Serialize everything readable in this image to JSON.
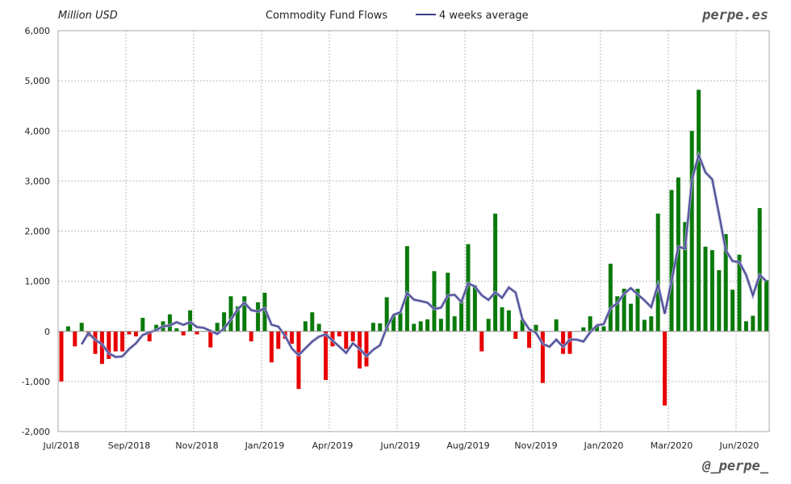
{
  "chart_data": {
    "type": "bar",
    "title": "Commodity Fund Flows",
    "ylabel": "Million USD",
    "legend": {
      "line_label": "4 weeks average",
      "placement": "top"
    },
    "brand_top": "perpe.es",
    "brand_bottom": "@_perpe_",
    "ylim": [
      -2000,
      6000
    ],
    "yticks": [
      6000,
      5000,
      4000,
      3000,
      2000,
      1000,
      0,
      -1000,
      -2000
    ],
    "ytick_labels": [
      "6,000",
      "5,000",
      "4,000",
      "3,000",
      "2,000",
      "1,000",
      "0",
      "-1,000",
      "-2,000"
    ],
    "xtick_labels": [
      "Jul/2018",
      "Sep/2018",
      "Nov/2018",
      "Jan/2019",
      "Apr/2019",
      "Jun/2019",
      "Aug/2019",
      "Nov/2019",
      "Jan/2020",
      "Mar/2020",
      "Jun/2020"
    ],
    "grid": true,
    "colors": {
      "positive": "#0a7a0a",
      "negative": "#e80000",
      "line": "#3c3c8c"
    },
    "values": [
      -1000,
      100,
      -300,
      170,
      -100,
      -450,
      -650,
      -550,
      -400,
      -400,
      -60,
      -100,
      270,
      -200,
      130,
      200,
      340,
      60,
      -80,
      420,
      -60,
      0,
      -320,
      170,
      380,
      700,
      500,
      700,
      -200,
      580,
      770,
      -620,
      -350,
      -150,
      -250,
      -1150,
      200,
      380,
      150,
      -970,
      -300,
      -100,
      -350,
      -200,
      -740,
      -700,
      170,
      160,
      680,
      310,
      370,
      1700,
      150,
      200,
      240,
      1200,
      250,
      1170,
      300,
      620,
      1740,
      920,
      -400,
      250,
      2350,
      480,
      420,
      -150,
      230,
      -330,
      130,
      -1030,
      0,
      240,
      -450,
      -450,
      0,
      80,
      300,
      100,
      100,
      1350,
      700,
      850,
      550,
      850,
      230,
      300,
      2350,
      -1480,
      2820,
      3070,
      2180,
      4000,
      4820,
      1690,
      1620,
      1220,
      1940,
      830,
      1530,
      200,
      310,
      2460,
      1020
    ]
  }
}
